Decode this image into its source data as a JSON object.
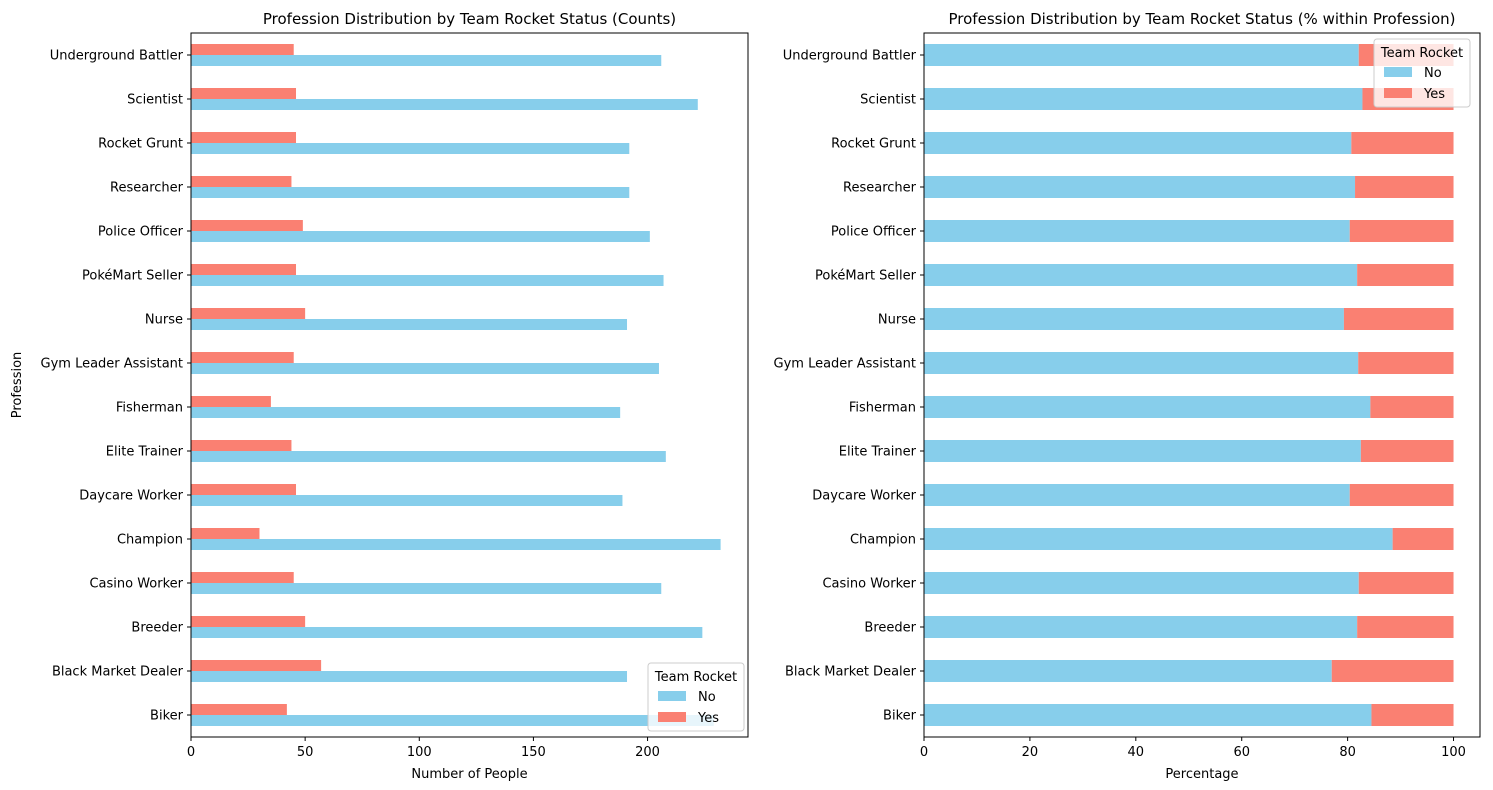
{
  "chart_data": [
    {
      "type": "bar",
      "orientation": "horizontal",
      "title": "Profession Distribution by Team Rocket Status (Counts)",
      "xlabel": "Number of People",
      "ylabel": "Profession",
      "xlim": [
        0,
        244
      ],
      "xticks": [
        0,
        50,
        100,
        150,
        200
      ],
      "categories": [
        "Biker",
        "Black Market Dealer",
        "Breeder",
        "Casino Worker",
        "Champion",
        "Daycare Worker",
        "Elite Trainer",
        "Fisherman",
        "Gym Leader Assistant",
        "Nurse",
        "PokéMart Seller",
        "Police Officer",
        "Researcher",
        "Rocket Grunt",
        "Scientist",
        "Underground Battler"
      ],
      "series": [
        {
          "name": "No",
          "color": "#87ceeb",
          "values": [
            229,
            191,
            224,
            206,
            232,
            189,
            208,
            188,
            205,
            191,
            207,
            201,
            192,
            192,
            222,
            206
          ]
        },
        {
          "name": "Yes",
          "color": "#fa8072",
          "values": [
            42,
            57,
            50,
            45,
            30,
            46,
            44,
            35,
            45,
            50,
            46,
            49,
            44,
            46,
            46,
            45
          ]
        }
      ],
      "legend": {
        "title": "Team Rocket",
        "placement": "lower-right"
      },
      "grid": false
    },
    {
      "type": "bar",
      "orientation": "horizontal",
      "stacked": true,
      "title": "Profession Distribution by Team Rocket Status (% within Profession)",
      "xlabel": "Percentage",
      "ylabel": "",
      "xlim": [
        0,
        105
      ],
      "xticks": [
        0,
        20,
        40,
        60,
        80,
        100
      ],
      "categories": [
        "Biker",
        "Black Market Dealer",
        "Breeder",
        "Casino Worker",
        "Champion",
        "Daycare Worker",
        "Elite Trainer",
        "Fisherman",
        "Gym Leader Assistant",
        "Nurse",
        "PokéMart Seller",
        "Police Officer",
        "Researcher",
        "Rocket Grunt",
        "Scientist",
        "Underground Battler"
      ],
      "series": [
        {
          "name": "No",
          "color": "#87ceeb",
          "values": [
            84.5,
            77.0,
            81.8,
            82.1,
            88.5,
            80.4,
            82.5,
            84.3,
            82.0,
            79.3,
            81.8,
            80.4,
            81.4,
            80.7,
            82.8,
            82.1
          ]
        },
        {
          "name": "Yes",
          "color": "#fa8072",
          "values": [
            15.5,
            23.0,
            18.2,
            17.9,
            11.5,
            19.6,
            17.5,
            15.7,
            18.0,
            20.7,
            18.2,
            19.6,
            18.6,
            19.3,
            17.2,
            17.9
          ]
        }
      ],
      "legend": {
        "title": "Team Rocket",
        "placement": "upper-right"
      },
      "grid": false
    }
  ]
}
